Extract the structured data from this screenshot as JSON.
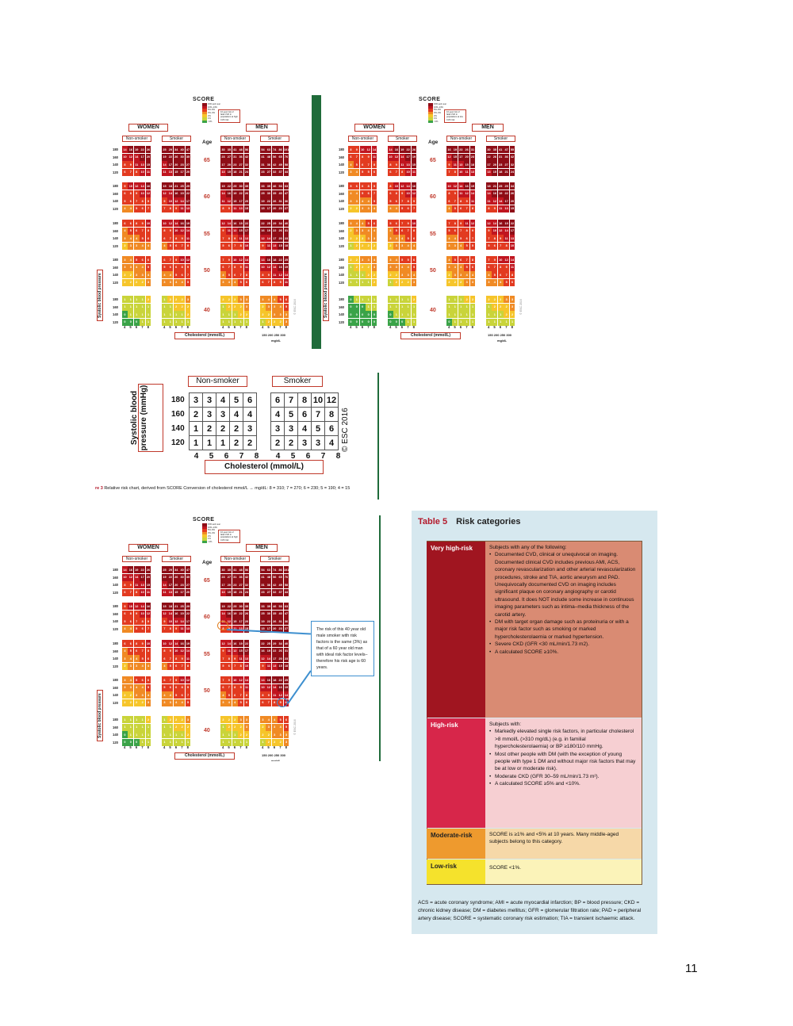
{
  "score_chart": {
    "logo": "SCORE",
    "legend": [
      "15% and over",
      "10%–14%",
      "5%–9%",
      "3%–4%",
      "2%",
      "1%",
      "<1%"
    ],
    "legend_colors": [
      "#8e0d16",
      "#c0151f",
      "#e23a20",
      "#f08a24",
      "#f6c52a",
      "#c9d43a",
      "#3aa348"
    ],
    "note": "10-year risk of fatal CVD in populations at high CVD risk",
    "note_low": "10-year risk of fatal CVD in populations at low CVD risk",
    "women": "WOMEN",
    "men": "MEN",
    "non_smoker": "Non-smoker",
    "smoker": "Smoker",
    "age": "Age",
    "ages": [
      "65",
      "60",
      "55",
      "50",
      "40"
    ],
    "bp": [
      "180",
      "160",
      "140",
      "120"
    ],
    "chol_ticks": [
      "4",
      "5",
      "6",
      "7",
      "8"
    ],
    "chol_label": "Cholesterol (mmol/L)",
    "mgdl_ticks": "150 200 250 300",
    "mgdl_unit": "mg/dL",
    "sbp_label": "Systolic blood pressure",
    "copyright_small": "© ESC 2016"
  },
  "relative_chart": {
    "non_smoker": "Non-smoker",
    "smoker": "Smoker",
    "sbp_label": "Systolic blood pressure (mmHg)",
    "chol_label": "Cholesterol (mmol/L)",
    "copyright": "© ESC 2016",
    "bp_rows": [
      "180",
      "160",
      "140",
      "120"
    ],
    "chol_ticks": [
      "4",
      "5",
      "6",
      "7",
      "8"
    ],
    "non_smoker_values": [
      [
        3,
        3,
        4,
        5,
        6
      ],
      [
        2,
        3,
        3,
        4,
        4
      ],
      [
        1,
        2,
        2,
        2,
        3
      ],
      [
        1,
        1,
        1,
        2,
        2
      ]
    ],
    "smoker_values": [
      [
        6,
        7,
        8,
        10,
        12
      ],
      [
        4,
        5,
        6,
        7,
        8
      ],
      [
        3,
        3,
        4,
        5,
        6
      ],
      [
        2,
        2,
        3,
        3,
        4
      ]
    ],
    "caption_prefix": "re 3",
    "caption": "Relative risk chart, derived from SCORE Conversion of cholesterol mmol/L → mg/dL: 8 = 310; 7 = 270; 6 = 230; 5 = 190; 4 = 15"
  },
  "callout": "The risk of this 40 year old male smoker with risk factors is the same (3%) as that of a 60 year old man with ideal risk factor levels–therefore his risk age is 60 years.",
  "table5": {
    "number": "Table 5",
    "title": "Risk categories",
    "categories": [
      {
        "label": "Very high-risk",
        "intro": "Subjects with any of the following:",
        "items": [
          "Documented CVD, clinical or unequivocal on imaging. Documented clinical CVD includes previous AMI, ACS, coronary revascularization and other arterial revascularization procedures, stroke and TIA, aortic aneurysm and PAD. Unequivocally documented CVD on imaging includes significant plaque on coronary angiography or carotid ultrasound. It does NOT include some increase in continuous imaging parameters such as intima–media thickness of the carotid artery.",
          "DM with target organ damage such as proteinuria or with a major risk factor such as smoking or marked hypercholesterolaemia or marked hypertension.",
          "Severe CKD (GFR <30 mL/min/1.73 m2).",
          "A calculated SCORE ≥10%."
        ]
      },
      {
        "label": "High-risk",
        "intro": "Subjects with:",
        "items": [
          "Markedly elevated single risk factors, in particular cholesterol >8 mmol/L (>310 mg/dL) (e.g. in familial hypercholesterolaemia) or BP ≥180/110 mmHg.",
          "Most other people with DM (with the exception of young people with type 1 DM and without major risk factors that may be at low or moderate risk).",
          "Moderate CKD (GFR 30–59 mL/min/1.73 m²).",
          "A calculated SCORE ≥5% and <10%."
        ]
      },
      {
        "label": "Moderate-risk",
        "intro": "SCORE is ≥1% and <5% at 10 years. Many middle-aged subjects belong to this category.",
        "items": []
      },
      {
        "label": "Low-risk",
        "intro": "SCORE <1%.",
        "items": []
      }
    ],
    "footnote": "ACS = acute coronary syndrome; AMI = acute myocardial infarction; BP = blood pressure; CKD = chronic kidney disease; DM = diabetes mellitus; GFR = glomerular filtration rate; PAD = peripheral artery disease; SCORE = systematic coronary risk estimation; TIA = transient ischaemic attack."
  },
  "page_number": "11"
}
